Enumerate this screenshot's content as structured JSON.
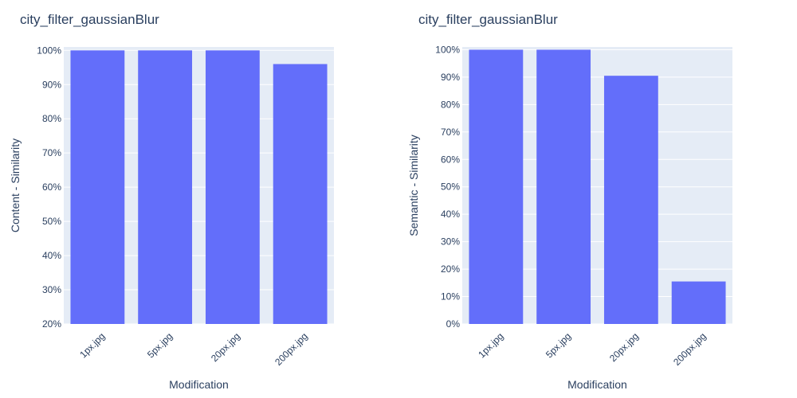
{
  "chart_data": [
    {
      "type": "bar",
      "title": "city_filter_gaussianBlur",
      "xlabel": "Modification",
      "ylabel": "Content - Similarity",
      "categories": [
        "1px.jpg",
        "5px.jpg",
        "20px.jpg",
        "200px.jpg"
      ],
      "values": [
        1.0,
        1.0,
        1.0,
        0.96
      ],
      "ylim": [
        0.2,
        1.01
      ],
      "yticks": [
        0.2,
        0.3,
        0.4,
        0.5,
        0.6,
        0.7,
        0.8,
        0.9,
        1.0
      ],
      "ytick_labels": [
        "20%",
        "30%",
        "40%",
        "50%",
        "60%",
        "70%",
        "80%",
        "90%",
        "100%"
      ],
      "grid": true,
      "bar_color": "#636efa",
      "background_color": "#e5ecf6"
    },
    {
      "type": "bar",
      "title": "city_filter_gaussianBlur",
      "xlabel": "Modification",
      "ylabel": "Semantic - Similarity",
      "categories": [
        "1px.jpg",
        "5px.jpg",
        "20px.jpg",
        "200px.jpg"
      ],
      "values": [
        1.0,
        1.0,
        0.905,
        0.155
      ],
      "ylim": [
        0,
        1.01
      ],
      "yticks": [
        0,
        0.1,
        0.2,
        0.3,
        0.4,
        0.5,
        0.6,
        0.7,
        0.8,
        0.9,
        1.0
      ],
      "ytick_labels": [
        "0%",
        "10%",
        "20%",
        "30%",
        "40%",
        "50%",
        "60%",
        "70%",
        "80%",
        "90%",
        "100%"
      ],
      "grid": true,
      "bar_color": "#636efa",
      "background_color": "#e5ecf6"
    }
  ]
}
